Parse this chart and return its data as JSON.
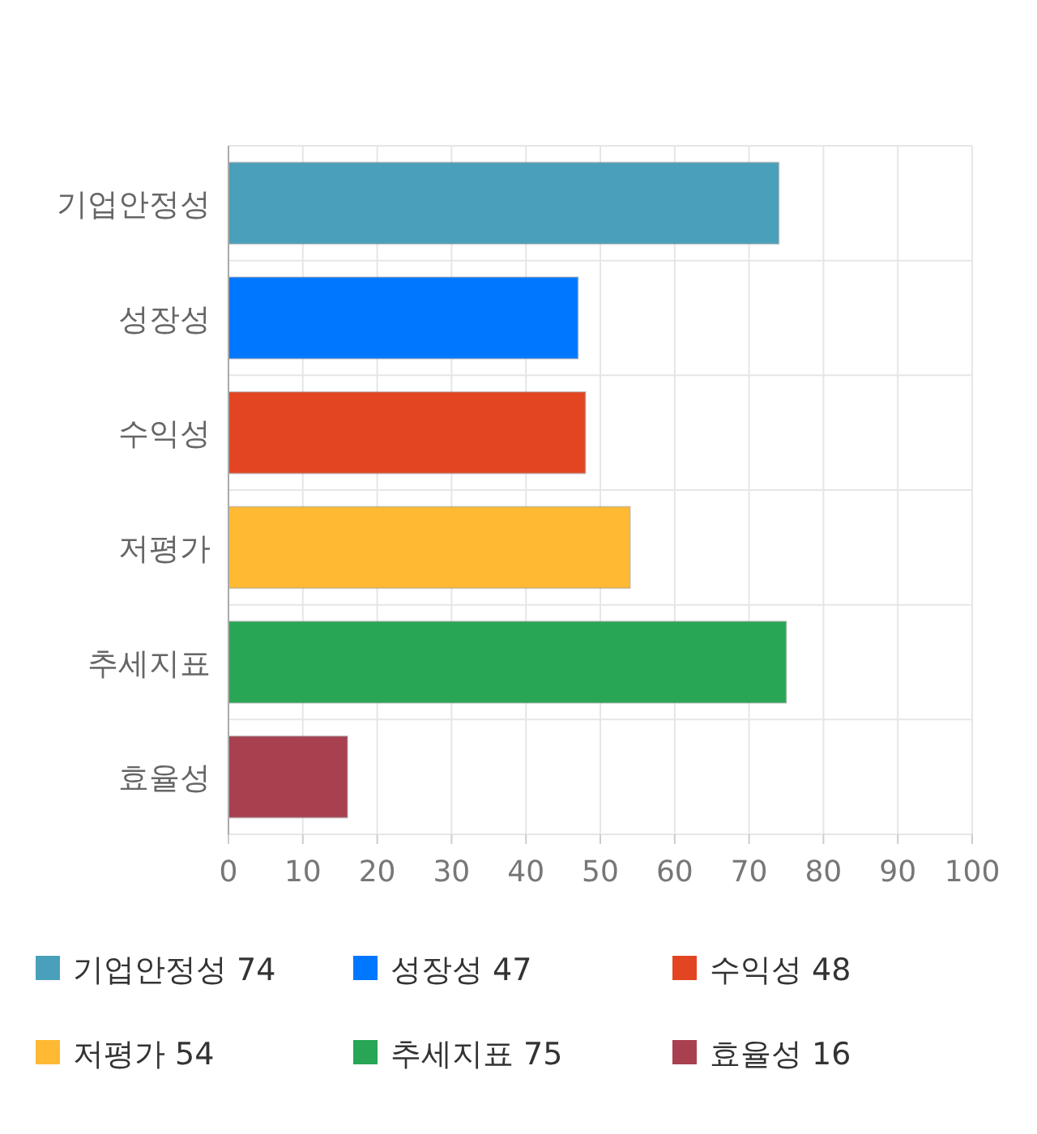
{
  "chart_data": {
    "type": "bar",
    "orientation": "horizontal",
    "stacked": true,
    "categories": [
      "기업안정성",
      "성장성",
      "수익성",
      "저평가",
      "추세지표",
      "효율성"
    ],
    "series": [
      {
        "name": "기업안정성 74",
        "color": "#4aa0ba",
        "values": [
          74,
          null,
          null,
          null,
          null,
          null
        ]
      },
      {
        "name": "성장성 47",
        "color": "#0077ff",
        "values": [
          null,
          47,
          null,
          null,
          null,
          null
        ]
      },
      {
        "name": "수익성 48",
        "color": "#e34522",
        "values": [
          null,
          null,
          48,
          null,
          null,
          null
        ]
      },
      {
        "name": "저평가 54",
        "color": "#ffb933",
        "values": [
          null,
          null,
          null,
          54,
          null,
          null
        ]
      },
      {
        "name": "추세지표 75",
        "color": "#28a655",
        "values": [
          null,
          null,
          null,
          null,
          75,
          null
        ]
      },
      {
        "name": "효율성 16",
        "color": "#a8404f",
        "values": [
          null,
          null,
          null,
          null,
          null,
          16
        ]
      }
    ],
    "xlim": [
      0,
      100
    ],
    "xticks": [
      0,
      10,
      20,
      30,
      40,
      50,
      60,
      70,
      80,
      90,
      100
    ],
    "grid": true,
    "legend": "bottom"
  }
}
